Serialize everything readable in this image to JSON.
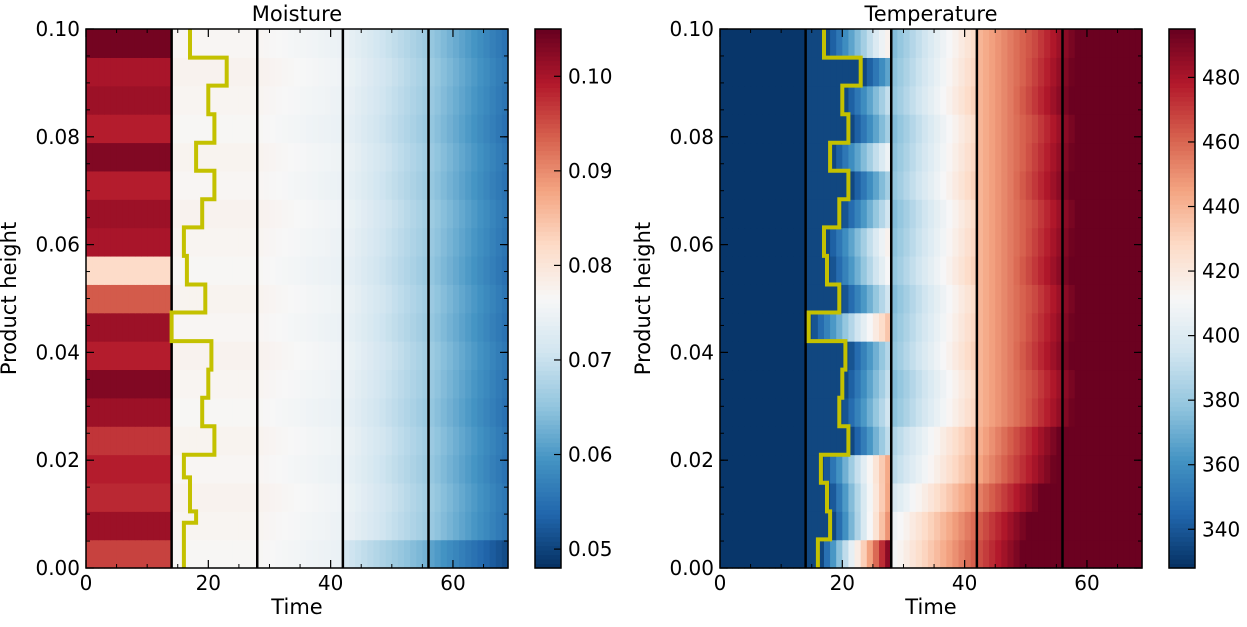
{
  "chart_data": [
    {
      "type": "heatmap",
      "title": "Moisture",
      "xlabel": "Time",
      "ylabel": "Product height",
      "xlim": [
        0,
        69
      ],
      "ylim": [
        0,
        0.1
      ],
      "x_ticks": [
        0,
        20,
        40,
        60
      ],
      "y_ticks": [
        0.0,
        0.02,
        0.04,
        0.06,
        0.08,
        0.1
      ],
      "colormap": "RdBu_r",
      "colorbar": {
        "vmin": 0.048,
        "vmax": 0.105,
        "ticks": [
          0.05,
          0.06,
          0.07,
          0.08,
          0.09,
          0.1
        ]
      },
      "rows": 19,
      "columns": 69,
      "row_initial_values": [
        0.096,
        0.101,
        0.098,
        0.099,
        0.097,
        0.101,
        0.103,
        0.099,
        0.101,
        0.094,
        0.082,
        0.1,
        0.101,
        0.099,
        0.103,
        0.099,
        0.101,
        0.1,
        0.104
      ],
      "vertical_lines_x": [
        14,
        28,
        42,
        56
      ],
      "front_line_color": "#c4c100",
      "front_line": [
        {
          "x": 16,
          "y0": 0.0,
          "y1": 0.0084
        },
        {
          "x": 18,
          "y0": 0.0084,
          "y1": 0.0105
        },
        {
          "x": 17,
          "y0": 0.0105,
          "y1": 0.0168
        },
        {
          "x": 16,
          "y0": 0.0168,
          "y1": 0.021
        },
        {
          "x": 21,
          "y0": 0.021,
          "y1": 0.0263
        },
        {
          "x": 19,
          "y0": 0.0263,
          "y1": 0.0316
        },
        {
          "x": 20,
          "y0": 0.0316,
          "y1": 0.0368
        },
        {
          "x": 20.5,
          "y0": 0.0368,
          "y1": 0.0421
        },
        {
          "x": 14,
          "y0": 0.0421,
          "y1": 0.0474
        },
        {
          "x": 19.5,
          "y0": 0.0474,
          "y1": 0.0526
        },
        {
          "x": 16.5,
          "y0": 0.0526,
          "y1": 0.0579
        },
        {
          "x": 16,
          "y0": 0.0579,
          "y1": 0.0632
        },
        {
          "x": 19,
          "y0": 0.0632,
          "y1": 0.0684
        },
        {
          "x": 21,
          "y0": 0.0684,
          "y1": 0.0737
        },
        {
          "x": 18,
          "y0": 0.0737,
          "y1": 0.0789
        },
        {
          "x": 21,
          "y0": 0.0789,
          "y1": 0.0842
        },
        {
          "x": 20,
          "y0": 0.0842,
          "y1": 0.0895
        },
        {
          "x": 23,
          "y0": 0.0895,
          "y1": 0.0947
        },
        {
          "x": 17,
          "y0": 0.0947,
          "y1": 0.1
        }
      ]
    },
    {
      "type": "heatmap",
      "title": "Temperature",
      "xlabel": "Time",
      "ylabel": "Product height",
      "xlim": [
        0,
        69
      ],
      "ylim": [
        0,
        0.1
      ],
      "x_ticks": [
        0,
        20,
        40,
        60
      ],
      "y_ticks": [
        0.0,
        0.02,
        0.04,
        0.06,
        0.08,
        0.1
      ],
      "colormap": "RdBu_r",
      "colorbar": {
        "vmin": 328,
        "vmax": 495,
        "ticks": [
          340,
          360,
          380,
          400,
          420,
          440,
          460,
          480
        ]
      },
      "rows": 19,
      "columns": 69,
      "row_initial_values": [
        330,
        330,
        330,
        330,
        330,
        330,
        330,
        330,
        330,
        330,
        330,
        330,
        330,
        330,
        330,
        330,
        330,
        330,
        330
      ],
      "vertical_lines_x": [
        14,
        28,
        42,
        56
      ],
      "front_line_color": "#c4c100",
      "front_line": [
        {
          "x": 16,
          "y0": 0.0,
          "y1": 0.0053
        },
        {
          "x": 18,
          "y0": 0.0053,
          "y1": 0.0105
        },
        {
          "x": 17.5,
          "y0": 0.0105,
          "y1": 0.0158
        },
        {
          "x": 16.5,
          "y0": 0.0158,
          "y1": 0.021
        },
        {
          "x": 21,
          "y0": 0.021,
          "y1": 0.0263
        },
        {
          "x": 19.5,
          "y0": 0.0263,
          "y1": 0.0316
        },
        {
          "x": 20,
          "y0": 0.0316,
          "y1": 0.0368
        },
        {
          "x": 20.5,
          "y0": 0.0368,
          "y1": 0.0421
        },
        {
          "x": 14.5,
          "y0": 0.0421,
          "y1": 0.0474
        },
        {
          "x": 19.5,
          "y0": 0.0474,
          "y1": 0.0526
        },
        {
          "x": 17.5,
          "y0": 0.0526,
          "y1": 0.0579
        },
        {
          "x": 17,
          "y0": 0.0579,
          "y1": 0.0632
        },
        {
          "x": 19.5,
          "y0": 0.0632,
          "y1": 0.0684
        },
        {
          "x": 21,
          "y0": 0.0684,
          "y1": 0.0737
        },
        {
          "x": 18,
          "y0": 0.0737,
          "y1": 0.0789
        },
        {
          "x": 21,
          "y0": 0.0789,
          "y1": 0.0842
        },
        {
          "x": 20,
          "y0": 0.0842,
          "y1": 0.0895
        },
        {
          "x": 23,
          "y0": 0.0895,
          "y1": 0.0947
        },
        {
          "x": 17,
          "y0": 0.0947,
          "y1": 0.1
        }
      ]
    }
  ]
}
